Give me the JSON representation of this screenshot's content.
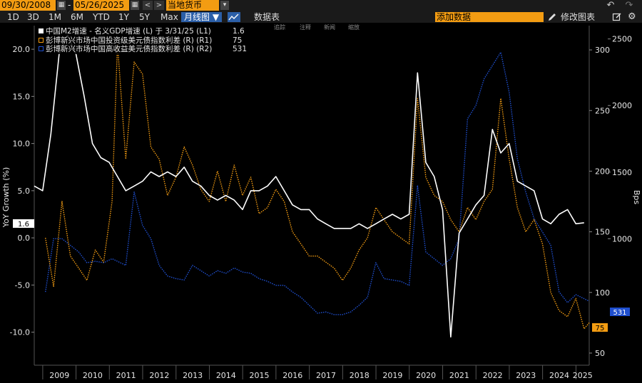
{
  "toolbar": {
    "start_date": "09/30/2008",
    "end_date": "05/26/2025",
    "separator": "-",
    "calendar_glyph": "▦",
    "prev_glyph": "<",
    "next_glyph": ">",
    "security": "当地货币",
    "dropdown_glyph": "▾",
    "undo_glyph": "↶",
    "redo_glyph": "↷"
  },
  "range_bar": {
    "ranges": [
      "1D",
      "3D",
      "1M",
      "6M",
      "YTD",
      "1Y",
      "5Y",
      "Max"
    ],
    "chart_type": "月线图 ▼",
    "table_label": "数据表",
    "add_data_placeholder": "添加数据",
    "edit_chart_label": "修改图表"
  },
  "annotation_tools": [
    "追踪",
    "注释",
    "新闻",
    "缩放"
  ],
  "icons": [
    "calendar-icon",
    "chevron-left-icon",
    "chevron-right-icon",
    "undo-icon",
    "redo-icon",
    "line-chart-icon",
    "pencil-icon",
    "edit-icon",
    "gear-icon"
  ],
  "colors": {
    "background": "#000000",
    "m2_gdp": "#ffffff",
    "ig_spread": "#f39c12",
    "hy_spread": "#1f4fcf",
    "toolbar": "#1a1a1a",
    "orange_ui": "#f39c12",
    "blue_ui": "#2b5fa8"
  },
  "chart_data": {
    "type": "line",
    "title": "",
    "x_axis": {
      "type": "date",
      "range": [
        "2008-09-30",
        "2025-05-26"
      ],
      "tick_labels": [
        "2009",
        "2010",
        "2011",
        "2012",
        "2013",
        "2014",
        "2015",
        "2016",
        "2017",
        "2018",
        "2019",
        "2020",
        "2021",
        "2022",
        "2023",
        "2024",
        "2025"
      ]
    },
    "left_axis": {
      "label": "YoY Growth (%)",
      "range": [
        -13.5,
        22.5
      ],
      "ticks": [
        20.0,
        15.0,
        10.0,
        5.0,
        0.0,
        -5.0,
        -10.0
      ],
      "tick_labels": [
        "20.0",
        "15.0",
        "10.0",
        "5.0",
        "0.0",
        "-5.0",
        "-10.0"
      ]
    },
    "right_axis_r1": {
      "range": [
        40,
        320
      ],
      "ticks": [
        300,
        250,
        200,
        150,
        100,
        50
      ],
      "tick_labels": [
        "300",
        "250",
        "200",
        "150",
        "100",
        "50"
      ]
    },
    "right_axis_r2": {
      "label": "Bps",
      "range": [
        50,
        2600
      ],
      "ticks": [
        2500,
        2000,
        1500,
        1000
      ],
      "tick_labels": [
        "2500",
        "2000",
        "1500",
        "1000"
      ]
    },
    "grid": false,
    "legend_position": "top-left",
    "series": [
      {
        "name": "中国M2增速 - 名义GDP增速 (L) 于 3/31/25 (L1)",
        "last_value": "1.6",
        "axis": "left",
        "style": "solid",
        "color": "#ffffff",
        "points": [
          [
            "2008-09-30",
            5.5
          ],
          [
            "2008-12-31",
            5.0
          ],
          [
            "2009-03-31",
            11.0
          ],
          [
            "2009-06-30",
            19.5
          ],
          [
            "2009-09-30",
            21.5
          ],
          [
            "2009-12-31",
            19.5
          ],
          [
            "2010-03-31",
            15.0
          ],
          [
            "2010-06-30",
            10.0
          ],
          [
            "2010-09-30",
            8.5
          ],
          [
            "2010-12-31",
            8.0
          ],
          [
            "2011-03-31",
            6.5
          ],
          [
            "2011-06-30",
            5.0
          ],
          [
            "2011-09-30",
            5.5
          ],
          [
            "2011-12-31",
            6.0
          ],
          [
            "2012-03-31",
            7.0
          ],
          [
            "2012-06-30",
            6.5
          ],
          [
            "2012-09-30",
            7.0
          ],
          [
            "2012-12-31",
            6.5
          ],
          [
            "2013-03-31",
            7.5
          ],
          [
            "2013-06-30",
            6.0
          ],
          [
            "2013-09-30",
            5.5
          ],
          [
            "2013-12-31",
            4.5
          ],
          [
            "2014-03-31",
            4.0
          ],
          [
            "2014-06-30",
            4.5
          ],
          [
            "2014-09-30",
            4.0
          ],
          [
            "2014-12-31",
            3.0
          ],
          [
            "2015-03-31",
            5.0
          ],
          [
            "2015-06-30",
            5.0
          ],
          [
            "2015-09-30",
            5.5
          ],
          [
            "2015-12-31",
            6.5
          ],
          [
            "2016-03-31",
            5.0
          ],
          [
            "2016-06-30",
            3.5
          ],
          [
            "2016-09-30",
            3.0
          ],
          [
            "2016-12-31",
            3.0
          ],
          [
            "2017-03-31",
            2.0
          ],
          [
            "2017-06-30",
            1.5
          ],
          [
            "2017-09-30",
            1.0
          ],
          [
            "2017-12-31",
            1.0
          ],
          [
            "2018-03-31",
            1.0
          ],
          [
            "2018-06-30",
            1.5
          ],
          [
            "2018-09-30",
            1.0
          ],
          [
            "2018-12-31",
            1.5
          ],
          [
            "2019-03-31",
            2.0
          ],
          [
            "2019-06-30",
            2.5
          ],
          [
            "2019-09-30",
            2.0
          ],
          [
            "2019-12-31",
            2.5
          ],
          [
            "2020-03-31",
            17.5
          ],
          [
            "2020-06-30",
            8.0
          ],
          [
            "2020-09-30",
            6.5
          ],
          [
            "2020-12-31",
            3.0
          ],
          [
            "2021-03-31",
            -10.5
          ],
          [
            "2021-06-30",
            0.5
          ],
          [
            "2021-09-30",
            2.0
          ],
          [
            "2021-12-31",
            3.5
          ],
          [
            "2022-03-31",
            4.5
          ],
          [
            "2022-06-30",
            11.5
          ],
          [
            "2022-09-30",
            9.0
          ],
          [
            "2022-12-31",
            10.0
          ],
          [
            "2023-03-31",
            6.0
          ],
          [
            "2023-06-30",
            5.5
          ],
          [
            "2023-09-30",
            5.0
          ],
          [
            "2023-12-31",
            2.0
          ],
          [
            "2024-03-31",
            1.5
          ],
          [
            "2024-06-30",
            2.5
          ],
          [
            "2024-09-30",
            3.0
          ],
          [
            "2024-12-31",
            1.5
          ],
          [
            "2025-03-31",
            1.6
          ]
        ]
      },
      {
        "name": "彭博新兴市场中国投资级美元债指数利差 (R) (R1)",
        "last_value": "75",
        "axis": "right_r1",
        "style": "dotted",
        "color": "#f39c12",
        "points": [
          [
            "2009-01-31",
            145
          ],
          [
            "2009-04-30",
            105
          ],
          [
            "2009-07-31",
            175
          ],
          [
            "2009-10-31",
            130
          ],
          [
            "2010-01-31",
            120
          ],
          [
            "2010-04-30",
            110
          ],
          [
            "2010-07-31",
            135
          ],
          [
            "2010-10-31",
            125
          ],
          [
            "2011-01-31",
            175
          ],
          [
            "2011-03-31",
            305
          ],
          [
            "2011-06-30",
            210
          ],
          [
            "2011-09-30",
            290
          ],
          [
            "2011-12-31",
            280
          ],
          [
            "2012-03-31",
            220
          ],
          [
            "2012-06-30",
            210
          ],
          [
            "2012-09-30",
            180
          ],
          [
            "2012-12-31",
            195
          ],
          [
            "2013-03-31",
            220
          ],
          [
            "2013-06-30",
            205
          ],
          [
            "2013-09-30",
            185
          ],
          [
            "2013-12-31",
            175
          ],
          [
            "2014-03-31",
            200
          ],
          [
            "2014-06-30",
            175
          ],
          [
            "2014-09-30",
            205
          ],
          [
            "2014-12-31",
            180
          ],
          [
            "2015-03-31",
            195
          ],
          [
            "2015-06-30",
            165
          ],
          [
            "2015-09-30",
            170
          ],
          [
            "2015-12-31",
            185
          ],
          [
            "2016-03-31",
            175
          ],
          [
            "2016-06-30",
            150
          ],
          [
            "2016-09-30",
            140
          ],
          [
            "2016-12-31",
            130
          ],
          [
            "2017-03-31",
            130
          ],
          [
            "2017-06-30",
            125
          ],
          [
            "2017-09-30",
            120
          ],
          [
            "2017-12-31",
            110
          ],
          [
            "2018-03-31",
            120
          ],
          [
            "2018-06-30",
            135
          ],
          [
            "2018-09-30",
            145
          ],
          [
            "2018-12-31",
            170
          ],
          [
            "2019-03-31",
            160
          ],
          [
            "2019-06-30",
            150
          ],
          [
            "2019-09-30",
            145
          ],
          [
            "2019-12-31",
            140
          ],
          [
            "2020-03-31",
            260
          ],
          [
            "2020-06-30",
            195
          ],
          [
            "2020-09-30",
            180
          ],
          [
            "2020-12-31",
            175
          ],
          [
            "2021-03-31",
            160
          ],
          [
            "2021-06-30",
            150
          ],
          [
            "2021-09-30",
            170
          ],
          [
            "2021-12-31",
            160
          ],
          [
            "2022-03-31",
            175
          ],
          [
            "2022-06-30",
            185
          ],
          [
            "2022-09-30",
            260
          ],
          [
            "2022-12-31",
            210
          ],
          [
            "2023-03-31",
            170
          ],
          [
            "2023-06-30",
            150
          ],
          [
            "2023-09-30",
            160
          ],
          [
            "2023-12-31",
            140
          ],
          [
            "2024-03-31",
            100
          ],
          [
            "2024-06-30",
            85
          ],
          [
            "2024-09-30",
            80
          ],
          [
            "2024-12-31",
            95
          ],
          [
            "2025-03-31",
            70
          ],
          [
            "2025-05-26",
            75
          ]
        ]
      },
      {
        "name": "彭博新兴市场中国高收益美元债指数利差 (R) (R2)",
        "last_value": "531",
        "axis": "right_r2",
        "style": "dotted",
        "color": "#1f4fcf",
        "points": [
          [
            "2009-01-31",
            600
          ],
          [
            "2009-04-30",
            1000
          ],
          [
            "2009-07-31",
            1000
          ],
          [
            "2009-10-31",
            950
          ],
          [
            "2010-01-31",
            900
          ],
          [
            "2010-04-30",
            820
          ],
          [
            "2010-07-31",
            830
          ],
          [
            "2010-10-31",
            820
          ],
          [
            "2011-01-31",
            850
          ],
          [
            "2011-06-30",
            800
          ],
          [
            "2011-09-30",
            1350
          ],
          [
            "2011-12-31",
            1100
          ],
          [
            "2012-03-31",
            1000
          ],
          [
            "2012-06-30",
            800
          ],
          [
            "2012-09-30",
            720
          ],
          [
            "2012-12-31",
            700
          ],
          [
            "2013-03-31",
            690
          ],
          [
            "2013-06-30",
            800
          ],
          [
            "2013-09-30",
            760
          ],
          [
            "2013-12-31",
            720
          ],
          [
            "2014-03-31",
            760
          ],
          [
            "2014-06-30",
            740
          ],
          [
            "2014-09-30",
            780
          ],
          [
            "2014-12-31",
            750
          ],
          [
            "2015-03-31",
            740
          ],
          [
            "2015-06-30",
            700
          ],
          [
            "2015-09-30",
            680
          ],
          [
            "2015-12-31",
            650
          ],
          [
            "2016-03-31",
            650
          ],
          [
            "2016-06-30",
            600
          ],
          [
            "2016-09-30",
            560
          ],
          [
            "2016-12-31",
            500
          ],
          [
            "2017-03-31",
            440
          ],
          [
            "2017-06-30",
            450
          ],
          [
            "2017-09-30",
            430
          ],
          [
            "2017-12-31",
            430
          ],
          [
            "2018-03-31",
            450
          ],
          [
            "2018-06-30",
            500
          ],
          [
            "2018-09-30",
            560
          ],
          [
            "2018-12-31",
            820
          ],
          [
            "2019-03-31",
            700
          ],
          [
            "2019-06-30",
            690
          ],
          [
            "2019-09-30",
            680
          ],
          [
            "2019-12-31",
            650
          ],
          [
            "2020-03-31",
            1400
          ],
          [
            "2020-06-30",
            900
          ],
          [
            "2020-09-30",
            850
          ],
          [
            "2020-12-31",
            800
          ],
          [
            "2021-03-31",
            850
          ],
          [
            "2021-06-30",
            1000
          ],
          [
            "2021-09-30",
            1900
          ],
          [
            "2021-12-31",
            2000
          ],
          [
            "2022-03-31",
            2200
          ],
          [
            "2022-06-30",
            2300
          ],
          [
            "2022-09-30",
            2400
          ],
          [
            "2022-12-31",
            2100
          ],
          [
            "2023-03-31",
            1600
          ],
          [
            "2023-06-30",
            1350
          ],
          [
            "2023-09-30",
            1150
          ],
          [
            "2023-12-31",
            1050
          ],
          [
            "2024-03-31",
            950
          ],
          [
            "2024-06-30",
            600
          ],
          [
            "2024-09-30",
            520
          ],
          [
            "2024-12-31",
            580
          ],
          [
            "2025-03-31",
            550
          ],
          [
            "2025-05-26",
            531
          ]
        ]
      }
    ]
  }
}
